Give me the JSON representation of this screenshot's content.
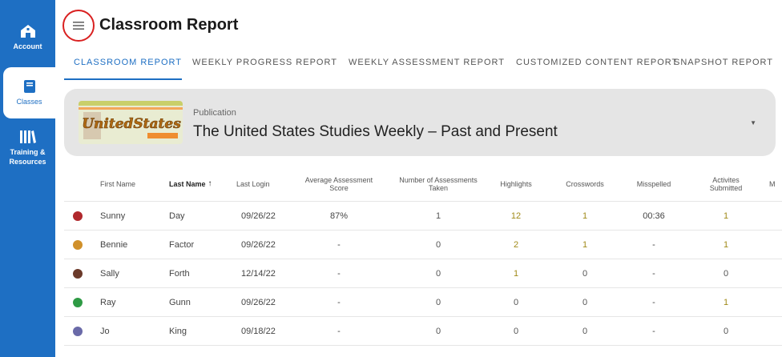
{
  "sidebar": {
    "items": [
      {
        "label": "Account",
        "icon": "home-icon"
      },
      {
        "label": "Classes",
        "icon": "book-icon",
        "active": true
      },
      {
        "label": "Training & Resources",
        "icon": "library-icon"
      }
    ]
  },
  "header": {
    "title": "Classroom Report",
    "menu_icon": "hamburger-icon"
  },
  "tabs": [
    {
      "label": "CLASSROOM REPORT",
      "active": true
    },
    {
      "label": "WEEKLY PROGRESS REPORT"
    },
    {
      "label": "WEEKLY ASSESSMENT REPORT"
    },
    {
      "label": "CUSTOMIZED CONTENT REPORT"
    },
    {
      "label": "SNAPSHOT REPORT"
    }
  ],
  "publication": {
    "label": "Publication",
    "value": "The United States Studies Weekly – Past and Present",
    "thumb_text": "UnitedStates"
  },
  "table": {
    "columns": [
      "First Name",
      "Last Name",
      "Last Login",
      "Average Assessment Score",
      "Number of Assessments Taken",
      "Highlights",
      "Crosswords",
      "Misspelled",
      "Activites Submitted",
      "M"
    ],
    "sort_arrow": "↑",
    "rows": [
      {
        "first": "Sunny",
        "last": "Day",
        "login": "09/26/22",
        "avg": "87%",
        "taken": "1",
        "highlights": "12",
        "crosswords": "1",
        "misspelled": "00:36",
        "activities": "1",
        "avatar_color": "#b0282c"
      },
      {
        "first": "Bennie",
        "last": "Factor",
        "login": "09/26/22",
        "avg": "-",
        "taken": "0",
        "highlights": "2",
        "crosswords": "1",
        "misspelled": "-",
        "activities": "1",
        "avatar_color": "#d0902a"
      },
      {
        "first": "Sally",
        "last": "Forth",
        "login": "12/14/22",
        "avg": "-",
        "taken": "0",
        "highlights": "1",
        "crosswords": "0",
        "misspelled": "-",
        "activities": "0",
        "avatar_color": "#6b3a2a"
      },
      {
        "first": "Ray",
        "last": "Gunn",
        "login": "09/26/22",
        "avg": "-",
        "taken": "0",
        "highlights": "0",
        "crosswords": "0",
        "misspelled": "-",
        "activities": "1",
        "avatar_color": "#2e9a44"
      },
      {
        "first": "Jo",
        "last": "King",
        "login": "09/18/22",
        "avg": "-",
        "taken": "0",
        "highlights": "0",
        "crosswords": "0",
        "misspelled": "-",
        "activities": "0",
        "avatar_color": "#6a6aa8"
      }
    ]
  },
  "colors": {
    "brand": "#1e6fc3",
    "accent_value": "#a08a18",
    "highlight_ring": "#d92020"
  }
}
